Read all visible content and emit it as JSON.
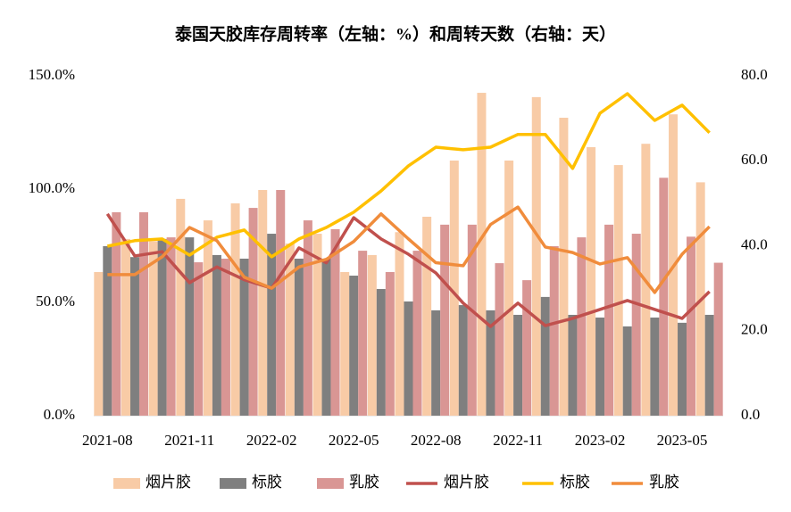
{
  "chart_data": {
    "type": "combo",
    "title": "泰国天胶库存周转率（左轴：%）和周转天数（右轴：天）",
    "categories": [
      "2021-08",
      null,
      null,
      "2021-11",
      null,
      null,
      "2022-02",
      null,
      null,
      "2022-05",
      null,
      null,
      "2022-08",
      null,
      null,
      "2022-11",
      null,
      null,
      "2023-02",
      null,
      null,
      "2023-05",
      null
    ],
    "ylim": [
      0,
      150
    ],
    "yticks": [
      {
        "value": 0,
        "label": "0.0%"
      },
      {
        "value": 50,
        "label": "50.0%"
      },
      {
        "value": 100,
        "label": "100.0%"
      },
      {
        "value": 150,
        "label": "150.0%"
      }
    ],
    "y2lim": [
      0,
      80
    ],
    "y2ticks": [
      {
        "value": 0,
        "label": "0.0"
      },
      {
        "value": 20,
        "label": "20.0"
      },
      {
        "value": 40,
        "label": "40.0"
      },
      {
        "value": 60,
        "label": "60.0"
      },
      {
        "value": 80,
        "label": "80.0"
      }
    ],
    "legend": "bottom",
    "series": [
      {
        "name": "烟片胶",
        "type": "bar",
        "color": "#f8cba6",
        "values": [
          63.4,
          78,
          77,
          95.7,
          86.2,
          93.7,
          99.6,
          76,
          80.3,
          63.4,
          70.9,
          81,
          87.8,
          112.6,
          142.5,
          112.6,
          140.6,
          131.5,
          118.5,
          110.6,
          120,
          133,
          103
        ]
      },
      {
        "name": "标胶",
        "type": "bar",
        "color": "#7f7f7f",
        "values": [
          74.8,
          70,
          78,
          78.7,
          70.9,
          69.3,
          80.3,
          69.3,
          69.3,
          61.8,
          55.9,
          50.4,
          46.5,
          48.8,
          46.5,
          44.5,
          52.4,
          44.5,
          43.3,
          39.4,
          43.3,
          41,
          44.5
        ]
      },
      {
        "name": "乳胶",
        "type": "bar",
        "color": "#d99694",
        "values": [
          89.8,
          89.8,
          78.7,
          67.7,
          69.3,
          91.7,
          99.6,
          86.2,
          82.3,
          72.8,
          63.4,
          72.8,
          84.3,
          84.3,
          67.3,
          59.8,
          74.8,
          78.7,
          84.3,
          80.3,
          105,
          79,
          67.5
        ]
      },
      {
        "name": "烟片胶",
        "type": "line",
        "axis": "y2",
        "color": "#c0504d",
        "values": [
          47.5,
          37.6,
          38.6,
          31.3,
          35,
          32,
          30,
          39.5,
          36,
          46.6,
          41.6,
          38,
          33.6,
          26.5,
          21,
          26.5,
          21.2,
          22.9,
          25,
          27.1,
          25,
          22.9,
          29.2
        ]
      },
      {
        "name": "标胶",
        "type": "line",
        "axis": "y2",
        "color": "#ffc000",
        "values": [
          39.9,
          41.2,
          41.6,
          37.8,
          42,
          43.7,
          37.4,
          41.6,
          44.3,
          47.9,
          52.9,
          58.8,
          63.2,
          62.6,
          63.2,
          66.2,
          66.2,
          58.2,
          71.2,
          75.8,
          69.5,
          73.1,
          66.6
        ]
      },
      {
        "name": "乳胶",
        "type": "line",
        "axis": "y2",
        "color": "#f08c3c",
        "values": [
          33.2,
          33.2,
          37.4,
          44.3,
          41.2,
          32.6,
          30,
          35,
          36.8,
          41,
          47.5,
          41.6,
          36,
          35.3,
          45,
          49.1,
          39.7,
          38.4,
          35.7,
          37.2,
          29,
          38,
          44.5
        ]
      }
    ]
  }
}
